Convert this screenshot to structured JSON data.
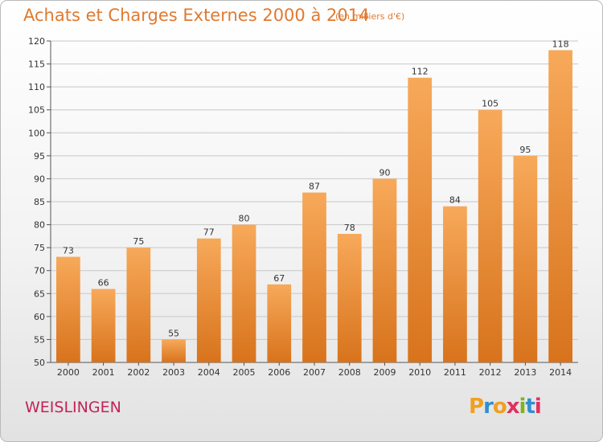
{
  "header": {
    "title": "Achats et Charges Externes 2000 à 2014",
    "subtitle": "(en milliers d'€)"
  },
  "footer": {
    "town": "WEISLINGEN",
    "logo_text": "Proxiti",
    "logo_colors": [
      "#f0a020",
      "#2f8fd0",
      "#f0a020",
      "#e03060",
      "#7ab51d",
      "#2f8fd0",
      "#e03060"
    ]
  },
  "colors": {
    "title": "#e07a30",
    "bar_top": "#f7a95a",
    "bar_bottom": "#d8731c",
    "grid": "#c8c8c8",
    "town": "#c0235a"
  },
  "chart_data": {
    "type": "bar",
    "categories": [
      "2000",
      "2001",
      "2002",
      "2003",
      "2004",
      "2005",
      "2006",
      "2007",
      "2008",
      "2009",
      "2010",
      "2011",
      "2012",
      "2013",
      "2014"
    ],
    "values": [
      73,
      66,
      75,
      55,
      77,
      80,
      67,
      87,
      78,
      90,
      112,
      84,
      105,
      95,
      118
    ],
    "data_labels": [
      "73",
      "66",
      "75",
      "55",
      "77",
      "80",
      "67",
      "87",
      "78",
      "90",
      "112",
      "84",
      "105",
      "95",
      "118"
    ],
    "title": "Achats et Charges Externes 2000 à 2014",
    "xlabel": "",
    "ylabel": "",
    "ylim": [
      50,
      120
    ],
    "yticks": [
      50,
      55,
      60,
      65,
      70,
      75,
      80,
      85,
      90,
      95,
      100,
      105,
      110,
      115,
      120
    ],
    "grid": true,
    "legend": "none"
  }
}
